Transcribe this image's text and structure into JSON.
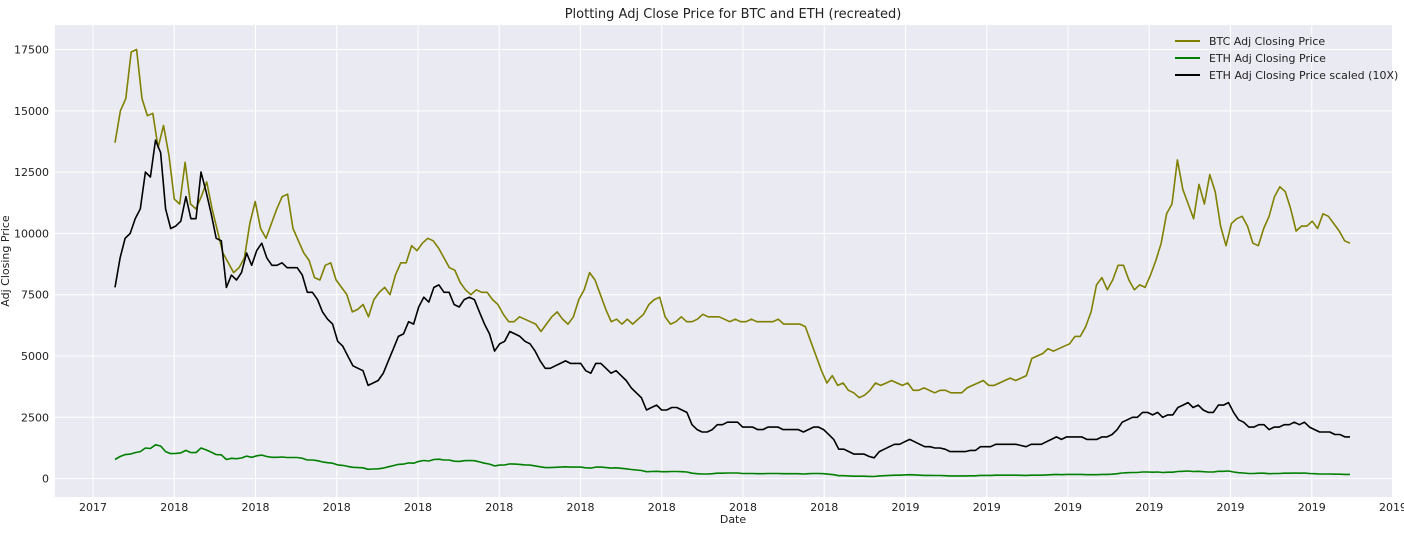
{
  "chart_data": {
    "type": "line",
    "title": "Plotting Adj Close Price for BTC and ETH (recreated)",
    "xlabel": "Date",
    "ylabel": "Adj Closing Price",
    "x_tick_labels": [
      "2017",
      "2018",
      "2018",
      "2018",
      "2018",
      "2018",
      "2018",
      "2018",
      "2018",
      "2018",
      "2019",
      "2019",
      "2019",
      "2019",
      "2019",
      "2019",
      "2019"
    ],
    "y_ticks": [
      0,
      2500,
      5000,
      7500,
      10000,
      12500,
      15000,
      17500
    ],
    "ylim": [
      -750,
      18500
    ],
    "grid": true,
    "legend_position": "top-right",
    "series": [
      {
        "name": "BTC Adj Closing Price",
        "color": "#808000",
        "values": [
          13700,
          15000,
          15500,
          17400,
          17500,
          15500,
          14800,
          14900,
          13500,
          14400,
          13200,
          11400,
          11200,
          12900,
          11200,
          11000,
          11500,
          12100,
          11000,
          10100,
          9200,
          8800,
          8400,
          8600,
          9000,
          10400,
          11300,
          10200,
          9800,
          10400,
          11000,
          11500,
          11600,
          10200,
          9700,
          9200,
          8900,
          8200,
          8100,
          8700,
          8800,
          8100,
          7800,
          7500,
          6800,
          6900,
          7100,
          6600,
          7300,
          7600,
          7800,
          7500,
          8300,
          8800,
          8800,
          9500,
          9300,
          9600,
          9800,
          9700,
          9400,
          9000,
          8600,
          8500,
          8000,
          7700,
          7500,
          7700,
          7600,
          7600,
          7300,
          7100,
          6700,
          6400,
          6400,
          6600,
          6500,
          6400,
          6300,
          6000,
          6300,
          6600,
          6800,
          6500,
          6300,
          6600,
          7300,
          7700,
          8400,
          8100,
          7500,
          6900,
          6400,
          6500,
          6300,
          6500,
          6300,
          6500,
          6700,
          7100,
          7300,
          7400,
          6600,
          6300,
          6400,
          6600,
          6400,
          6400,
          6500,
          6700,
          6600,
          6600,
          6600,
          6500,
          6400,
          6500,
          6400,
          6400,
          6500,
          6400,
          6400,
          6400,
          6400,
          6500,
          6300,
          6300,
          6300,
          6300,
          6200,
          5600,
          5000,
          4400,
          3900,
          4200,
          3800,
          3900,
          3600,
          3500,
          3300,
          3400,
          3600,
          3900,
          3800,
          3900,
          4000,
          3900,
          3800,
          3900,
          3600,
          3600,
          3700,
          3600,
          3500,
          3600,
          3600,
          3500,
          3500,
          3500,
          3700,
          3800,
          3900,
          4000,
          3800,
          3800,
          3900,
          4000,
          4100,
          4000,
          4100,
          4200,
          4900,
          5000,
          5100,
          5300,
          5200,
          5300,
          5400,
          5500,
          5800,
          5800,
          6200,
          6800,
          7900,
          8200,
          7700,
          8100,
          8700,
          8700,
          8100,
          7700,
          7900,
          7800,
          8300,
          8900,
          9600,
          10800,
          11200,
          13000,
          11800,
          11200,
          10600,
          12000,
          11200,
          12400,
          11700,
          10300,
          9500,
          10400,
          10600,
          10700,
          10300,
          9600,
          9500,
          10200,
          10700,
          11500,
          11900,
          11700,
          11000,
          10100,
          10300,
          10300,
          10500,
          10200,
          10800,
          10700,
          10400,
          10100,
          9700,
          9600
        ]
      },
      {
        "name": "ETH Adj Closing Price",
        "color": "#008000",
        "values": [
          780,
          900,
          980,
          1000,
          1060,
          1100,
          1250,
          1230,
          1380,
          1330,
          1100,
          1020,
          1030,
          1050,
          1150,
          1060,
          1060,
          1250,
          1170,
          1080,
          980,
          970,
          780,
          830,
          810,
          840,
          920,
          870,
          930,
          960,
          900,
          870,
          870,
          880,
          860,
          860,
          860,
          830,
          760,
          760,
          730,
          680,
          650,
          630,
          560,
          540,
          500,
          460,
          450,
          440,
          380,
          390,
          400,
          430,
          480,
          530,
          580,
          590,
          640,
          630,
          700,
          740,
          720,
          780,
          790,
          760,
          760,
          710,
          700,
          730,
          740,
          730,
          680,
          630,
          590,
          520,
          550,
          560,
          600,
          590,
          580,
          560,
          550,
          520,
          480,
          450,
          450,
          460,
          470,
          480,
          470,
          470,
          470,
          440,
          430,
          470,
          470,
          450,
          430,
          440,
          420,
          400,
          370,
          350,
          330,
          280,
          290,
          300,
          280,
          280,
          290,
          290,
          280,
          270,
          220,
          200,
          190,
          190,
          200,
          220,
          220,
          230,
          230,
          230,
          210,
          210,
          210,
          200,
          200,
          210,
          210,
          210,
          200,
          200,
          200,
          200,
          190,
          200,
          210,
          210,
          200,
          180,
          160,
          120,
          120,
          110,
          100,
          100,
          100,
          90,
          85,
          110,
          120,
          130,
          140,
          140,
          150,
          160,
          150,
          140,
          130,
          130,
          125,
          125,
          120,
          110,
          110,
          110,
          110,
          115,
          115,
          130,
          130,
          130,
          140,
          140,
          140,
          140,
          140,
          135,
          130,
          140,
          140,
          140,
          150,
          160,
          170,
          160,
          170,
          170,
          170,
          170,
          160,
          160,
          160,
          170,
          170,
          180,
          200,
          230,
          240,
          250,
          250,
          270,
          270,
          260,
          270,
          250,
          260,
          260,
          290,
          300,
          310,
          290,
          300,
          280,
          270,
          270,
          300,
          300,
          310,
          270,
          240,
          230,
          210,
          210,
          220,
          220,
          200,
          210,
          210,
          220,
          220,
          230,
          220,
          230,
          210,
          200,
          190,
          190,
          190,
          180,
          180,
          170,
          170
        ]
      },
      {
        "name": "ETH Adj Closing Price scaled (10X)",
        "color": "#000000",
        "values": [
          7800,
          9000,
          9800,
          10000,
          10600,
          11000,
          12500,
          12300,
          13800,
          13300,
          11000,
          10200,
          10300,
          10500,
          11500,
          10600,
          10600,
          12500,
          11700,
          10800,
          9800,
          9700,
          7800,
          8300,
          8100,
          8400,
          9200,
          8700,
          9300,
          9600,
          9000,
          8700,
          8700,
          8800,
          8600,
          8600,
          8600,
          8300,
          7600,
          7600,
          7300,
          6800,
          6500,
          6300,
          5600,
          5400,
          5000,
          4600,
          4500,
          4400,
          3800,
          3900,
          4000,
          4300,
          4800,
          5300,
          5800,
          5900,
          6400,
          6300,
          7000,
          7400,
          7200,
          7800,
          7900,
          7600,
          7600,
          7100,
          7000,
          7300,
          7400,
          7300,
          6800,
          6300,
          5900,
          5200,
          5500,
          5600,
          6000,
          5900,
          5800,
          5600,
          5500,
          5200,
          4800,
          4500,
          4500,
          4600,
          4700,
          4800,
          4700,
          4700,
          4700,
          4400,
          4300,
          4700,
          4700,
          4500,
          4300,
          4400,
          4200,
          4000,
          3700,
          3500,
          3300,
          2800,
          2900,
          3000,
          2800,
          2800,
          2900,
          2900,
          2800,
          2700,
          2200,
          2000,
          1900,
          1900,
          2000,
          2200,
          2200,
          2300,
          2300,
          2300,
          2100,
          2100,
          2100,
          2000,
          2000,
          2100,
          2100,
          2100,
          2000,
          2000,
          2000,
          2000,
          1900,
          2000,
          2100,
          2100,
          2000,
          1800,
          1600,
          1200,
          1200,
          1100,
          1000,
          1000,
          1000,
          900,
          850,
          1100,
          1200,
          1300,
          1400,
          1400,
          1500,
          1600,
          1500,
          1400,
          1300,
          1300,
          1250,
          1250,
          1200,
          1100,
          1100,
          1100,
          1100,
          1150,
          1150,
          1300,
          1300,
          1300,
          1400,
          1400,
          1400,
          1400,
          1400,
          1350,
          1300,
          1400,
          1400,
          1400,
          1500,
          1600,
          1700,
          1600,
          1700,
          1700,
          1700,
          1700,
          1600,
          1600,
          1600,
          1700,
          1700,
          1800,
          2000,
          2300,
          2400,
          2500,
          2500,
          2700,
          2700,
          2600,
          2700,
          2500,
          2600,
          2600,
          2900,
          3000,
          3100,
          2900,
          3000,
          2800,
          2700,
          2700,
          3000,
          3000,
          3100,
          2700,
          2400,
          2300,
          2100,
          2100,
          2200,
          2200,
          2000,
          2100,
          2100,
          2200,
          2200,
          2300,
          2200,
          2300,
          2100,
          2000,
          1900,
          1900,
          1900,
          1800,
          1800,
          1700,
          1700
        ]
      }
    ]
  }
}
